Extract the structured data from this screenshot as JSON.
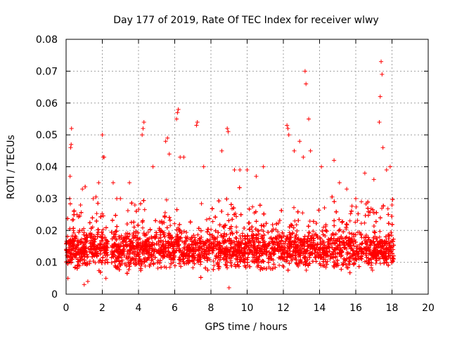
{
  "chart_data": {
    "type": "scatter",
    "title": "Day 177 of 2019, Rate Of TEC Index for receiver wlwy",
    "xlabel": "GPS time / hours",
    "ylabel": "ROTI / TECUs",
    "xlim": [
      0,
      20
    ],
    "ylim": [
      0,
      0.08
    ],
    "xticks": [
      0,
      2,
      4,
      6,
      8,
      10,
      12,
      14,
      16,
      18,
      20
    ],
    "yticks": [
      0,
      0.01,
      0.02,
      0.03,
      0.04,
      0.05,
      0.06,
      0.07,
      0.08
    ],
    "xtick_labels": [
      "0",
      "2",
      "4",
      "6",
      "8",
      "10",
      "12",
      "14",
      "16",
      "18",
      "20"
    ],
    "ytick_labels": [
      "0",
      "0.01",
      "0.02",
      "0.03",
      "0.04",
      "0.05",
      "0.06",
      "0.07",
      "0.08"
    ],
    "grid": true,
    "marker": "+",
    "color": "#ff0000",
    "data_extent": {
      "x_start": 0,
      "x_end": 18.1,
      "gap": [
        2.3,
        2.5
      ]
    },
    "series": [
      {
        "name": "ROTI",
        "points": [
          [
            0.1,
            0.005
          ],
          [
            0.15,
            0.012
          ],
          [
            0.2,
            0.03
          ],
          [
            0.22,
            0.037
          ],
          [
            0.25,
            0.046
          ],
          [
            0.28,
            0.047
          ],
          [
            0.3,
            0.052
          ],
          [
            0.4,
            0.02
          ],
          [
            0.6,
            0.025
          ],
          [
            0.8,
            0.028
          ],
          [
            0.9,
            0.033
          ],
          [
            1.0,
            0.003
          ],
          [
            1.2,
            0.004
          ],
          [
            1.5,
            0.03
          ],
          [
            1.8,
            0.035
          ],
          [
            2.0,
            0.05
          ],
          [
            2.05,
            0.043
          ],
          [
            2.1,
            0.043
          ],
          [
            2.2,
            0.005
          ],
          [
            2.6,
            0.035
          ],
          [
            2.8,
            0.03
          ],
          [
            3.0,
            0.03
          ],
          [
            3.5,
            0.035
          ],
          [
            3.8,
            0.028
          ],
          [
            4.2,
            0.05
          ],
          [
            4.25,
            0.052
          ],
          [
            4.3,
            0.054
          ],
          [
            4.8,
            0.04
          ],
          [
            5.5,
            0.048
          ],
          [
            5.6,
            0.049
          ],
          [
            5.7,
            0.044
          ],
          [
            6.1,
            0.055
          ],
          [
            6.15,
            0.057
          ],
          [
            6.2,
            0.058
          ],
          [
            6.3,
            0.043
          ],
          [
            6.5,
            0.043
          ],
          [
            7.2,
            0.053
          ],
          [
            7.25,
            0.054
          ],
          [
            7.6,
            0.04
          ],
          [
            8.6,
            0.045
          ],
          [
            8.9,
            0.052
          ],
          [
            8.95,
            0.051
          ],
          [
            9.0,
            0.002
          ],
          [
            9.3,
            0.039
          ],
          [
            9.6,
            0.039
          ],
          [
            10.0,
            0.039
          ],
          [
            10.5,
            0.037
          ],
          [
            10.9,
            0.04
          ],
          [
            12.2,
            0.053
          ],
          [
            12.25,
            0.052
          ],
          [
            12.3,
            0.05
          ],
          [
            12.6,
            0.045
          ],
          [
            12.9,
            0.048
          ],
          [
            13.1,
            0.043
          ],
          [
            13.2,
            0.07
          ],
          [
            13.25,
            0.066
          ],
          [
            13.4,
            0.055
          ],
          [
            13.5,
            0.045
          ],
          [
            14.1,
            0.04
          ],
          [
            14.8,
            0.042
          ],
          [
            15.1,
            0.035
          ],
          [
            15.5,
            0.033
          ],
          [
            16.0,
            0.03
          ],
          [
            16.5,
            0.038
          ],
          [
            17.0,
            0.036
          ],
          [
            17.3,
            0.054
          ],
          [
            17.35,
            0.062
          ],
          [
            17.4,
            0.073
          ],
          [
            17.45,
            0.069
          ],
          [
            17.5,
            0.046
          ],
          [
            17.7,
            0.039
          ],
          [
            17.9,
            0.04
          ],
          [
            18.0,
            0.028
          ],
          [
            18.1,
            0.012
          ]
        ]
      }
    ]
  }
}
